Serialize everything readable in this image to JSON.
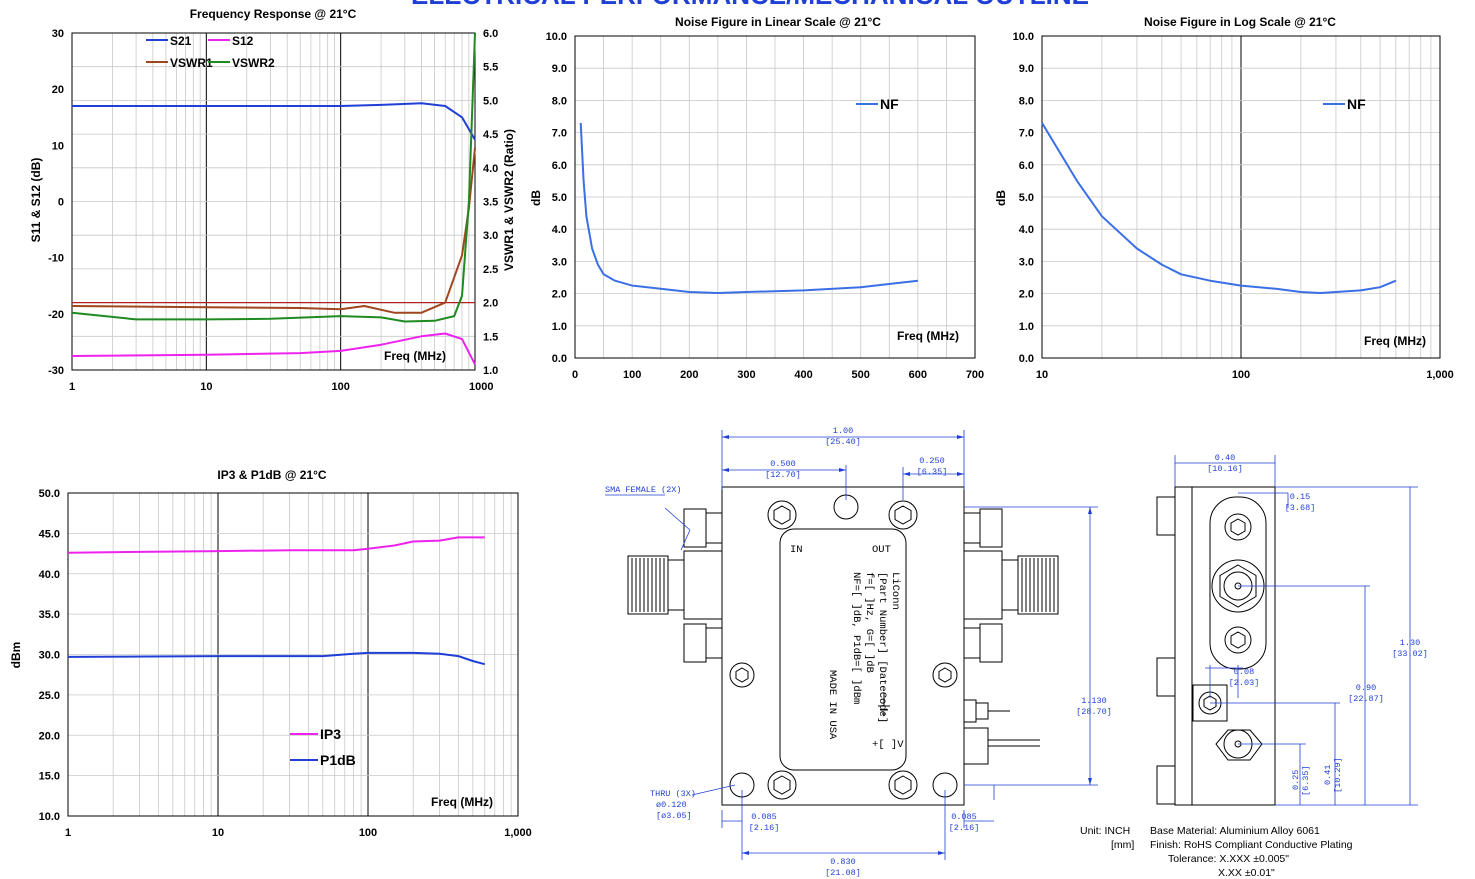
{
  "banner": "ELECTRICAL PERFORMANCE/MECHANICAL OUTLINE",
  "colors": {
    "blue": "#1f3fd6",
    "nf": "#3a6fe6",
    "magenta": "#ee22ee",
    "brown": "#a0461e",
    "green": "#1f8a1f",
    "red": "#b02020"
  },
  "chart_data": [
    {
      "type": "line",
      "title": "Frequency Response @ 21°C",
      "xlabel": "Freq (MHz)",
      "ylabel": "S11 & S12 (dB)",
      "y2label": "VSWR1 & VSWR2 (Ratio)",
      "xscale": "log",
      "xlim": [
        1,
        1000
      ],
      "ylim": [
        -30,
        30
      ],
      "y2lim": [
        1.0,
        6.0
      ],
      "xticks": [
        "1",
        "10",
        "100",
        "1000"
      ],
      "yticks": [
        "-30",
        "-20",
        "-10",
        "0",
        "10",
        "20",
        "30"
      ],
      "y2ticks": [
        "1.0",
        "1.5",
        "2.0",
        "2.5",
        "3.0",
        "3.5",
        "4.0",
        "4.5",
        "5.0",
        "5.5",
        "6.0"
      ],
      "reference_line": {
        "axis": "y2",
        "value": 2.0
      },
      "series": [
        {
          "name": "S21",
          "axis": "y",
          "color": "#1f3fd6",
          "points": [
            [
              1,
              17
            ],
            [
              10,
              17
            ],
            [
              100,
              17
            ],
            [
              200,
              17.2
            ],
            [
              400,
              17.5
            ],
            [
              600,
              17
            ],
            [
              800,
              15
            ],
            [
              1000,
              11
            ]
          ]
        },
        {
          "name": "S12",
          "axis": "y",
          "color": "#ee22ee",
          "points": [
            [
              1,
              -27.5
            ],
            [
              10,
              -27.3
            ],
            [
              50,
              -27
            ],
            [
              100,
              -26.6
            ],
            [
              200,
              -25.5
            ],
            [
              400,
              -24
            ],
            [
              600,
              -23.5
            ],
            [
              800,
              -24.5
            ],
            [
              1000,
              -29
            ]
          ]
        },
        {
          "name": "VSWR1",
          "axis": "y2",
          "color": "#a0461e",
          "points": [
            [
              1,
              1.95
            ],
            [
              10,
              1.93
            ],
            [
              50,
              1.92
            ],
            [
              100,
              1.9
            ],
            [
              150,
              1.95
            ],
            [
              250,
              1.85
            ],
            [
              400,
              1.85
            ],
            [
              600,
              2.0
            ],
            [
              800,
              2.7
            ],
            [
              900,
              3.4
            ],
            [
              1000,
              4.3
            ]
          ]
        },
        {
          "name": "VSWR2",
          "axis": "y2",
          "color": "#1f8a1f",
          "points": [
            [
              1,
              1.85
            ],
            [
              3,
              1.75
            ],
            [
              10,
              1.75
            ],
            [
              30,
              1.76
            ],
            [
              100,
              1.8
            ],
            [
              200,
              1.78
            ],
            [
              300,
              1.72
            ],
            [
              500,
              1.73
            ],
            [
              700,
              1.8
            ],
            [
              800,
              2.1
            ],
            [
              900,
              3.5
            ],
            [
              1000,
              6.0
            ]
          ]
        }
      ]
    },
    {
      "type": "line",
      "title": "Noise Figure in Linear Scale @ 21°C",
      "xlabel": "Freq (MHz)",
      "ylabel": "dB",
      "xlim": [
        0,
        700
      ],
      "ylim": [
        0,
        10
      ],
      "xticks": [
        "0",
        "100",
        "200",
        "300",
        "400",
        "500",
        "600",
        "700"
      ],
      "yticks": [
        "0.0",
        "1.0",
        "2.0",
        "3.0",
        "4.0",
        "5.0",
        "6.0",
        "7.0",
        "8.0",
        "9.0",
        "10.0"
      ],
      "series": [
        {
          "name": "NF",
          "color": "#3a6fe6",
          "points": [
            [
              10,
              7.3
            ],
            [
              15,
              5.5
            ],
            [
              20,
              4.4
            ],
            [
              30,
              3.4
            ],
            [
              40,
              2.9
            ],
            [
              50,
              2.6
            ],
            [
              70,
              2.4
            ],
            [
              100,
              2.25
            ],
            [
              150,
              2.15
            ],
            [
              200,
              2.05
            ],
            [
              250,
              2.02
            ],
            [
              300,
              2.05
            ],
            [
              400,
              2.1
            ],
            [
              500,
              2.2
            ],
            [
              600,
              2.4
            ]
          ]
        }
      ]
    },
    {
      "type": "line",
      "title": "Noise Figure in Log Scale @ 21°C",
      "xlabel": "Freq (MHz)",
      "ylabel": "dB",
      "xscale": "log",
      "xlim": [
        10,
        1000
      ],
      "ylim": [
        0,
        10
      ],
      "xticks": [
        "10",
        "100",
        "1,000"
      ],
      "yticks": [
        "0.0",
        "1.0",
        "2.0",
        "3.0",
        "4.0",
        "5.0",
        "6.0",
        "7.0",
        "8.0",
        "9.0",
        "10.0"
      ],
      "series": [
        {
          "name": "NF",
          "color": "#3a6fe6",
          "points": [
            [
              10,
              7.3
            ],
            [
              15,
              5.5
            ],
            [
              20,
              4.4
            ],
            [
              30,
              3.4
            ],
            [
              40,
              2.9
            ],
            [
              50,
              2.6
            ],
            [
              70,
              2.4
            ],
            [
              100,
              2.25
            ],
            [
              150,
              2.15
            ],
            [
              200,
              2.05
            ],
            [
              250,
              2.02
            ],
            [
              300,
              2.05
            ],
            [
              400,
              2.1
            ],
            [
              500,
              2.2
            ],
            [
              600,
              2.4
            ]
          ]
        }
      ]
    },
    {
      "type": "line",
      "title": "IP3 & P1dB @ 21°C",
      "xlabel": "Freq (MHz)",
      "ylabel": "dBm",
      "xscale": "log",
      "xlim": [
        1,
        1000
      ],
      "ylim": [
        10,
        50
      ],
      "xticks": [
        "1",
        "10",
        "100",
        "1,000"
      ],
      "yticks": [
        "10.0",
        "15.0",
        "20.0",
        "25.0",
        "30.0",
        "35.0",
        "40.0",
        "45.0",
        "50.0"
      ],
      "series": [
        {
          "name": "IP3",
          "color": "#ee22ee",
          "points": [
            [
              1,
              42.6
            ],
            [
              3,
              42.7
            ],
            [
              10,
              42.8
            ],
            [
              30,
              42.9
            ],
            [
              80,
              42.9
            ],
            [
              100,
              43.1
            ],
            [
              150,
              43.5
            ],
            [
              200,
              44
            ],
            [
              300,
              44.1
            ],
            [
              400,
              44.5
            ],
            [
              600,
              44.5
            ]
          ]
        },
        {
          "name": "P1dB",
          "color": "#1f3fd6",
          "points": [
            [
              1,
              29.7
            ],
            [
              10,
              29.8
            ],
            [
              50,
              29.8
            ],
            [
              80,
              30.1
            ],
            [
              100,
              30.2
            ],
            [
              200,
              30.2
            ],
            [
              300,
              30.1
            ],
            [
              400,
              29.8
            ],
            [
              500,
              29.2
            ],
            [
              600,
              28.8
            ]
          ]
        }
      ]
    }
  ],
  "drawing": {
    "body_text": {
      "in": "IN",
      "out": "OUT",
      "lines": [
        "LiConn",
        "[Part Number] [DateCode]",
        "f=[ ]Hz, G=[ ]dB",
        "NF=[ ]dB, P1dB=[ ]dBm",
        "MADE IN USA"
      ],
      "power": "+[ ]V"
    },
    "labels": {
      "sma": "SMA FEMALE (2X)",
      "thru": "THRU (3X)",
      "hole_in": "ø0.120",
      "hole_mm": "[ø3.05]"
    },
    "dims": [
      {
        "id": "w_total",
        "in": "1.00",
        "mm": "[25.40]"
      },
      {
        "id": "w_half",
        "in": "0.500",
        "mm": "[12.70]"
      },
      {
        "id": "w_right",
        "in": "0.250",
        "mm": "[6.35]"
      },
      {
        "id": "h_holes",
        "in": "1.130",
        "mm": "[28.70]"
      },
      {
        "id": "off_left",
        "in": "0.085",
        "mm": "[2.16]"
      },
      {
        "id": "off_right",
        "in": "0.085",
        "mm": "[2.16]"
      },
      {
        "id": "w_holes",
        "in": "0.830",
        "mm": "[21.08]"
      },
      {
        "id": "side_w",
        "in": "0.40",
        "mm": "[10.16]"
      },
      {
        "id": "side_c",
        "in": "0.15",
        "mm": "[3.68]"
      },
      {
        "id": "side_h",
        "in": "1.30",
        "mm": "[33.02]"
      },
      {
        "id": "side_090",
        "in": "0.90",
        "mm": "[22.87]"
      },
      {
        "id": "side_008",
        "in": "0.08",
        "mm": "[2.03]"
      },
      {
        "id": "side_041",
        "in": "0.41",
        "mm": "[10.29]"
      },
      {
        "id": "side_025",
        "in": "0.25",
        "mm": "[6.35]"
      }
    ],
    "notes": [
      [
        "Unit: INCH",
        "Base Material: Aluminium Alloy 6061"
      ],
      [
        "[mm]",
        "Finish: RoHS Compliant Conductive Plating"
      ],
      [
        "",
        "Tolerance: X.XXX   ±0.005\""
      ],
      [
        "",
        "X.XX     ±0.01\""
      ]
    ]
  }
}
